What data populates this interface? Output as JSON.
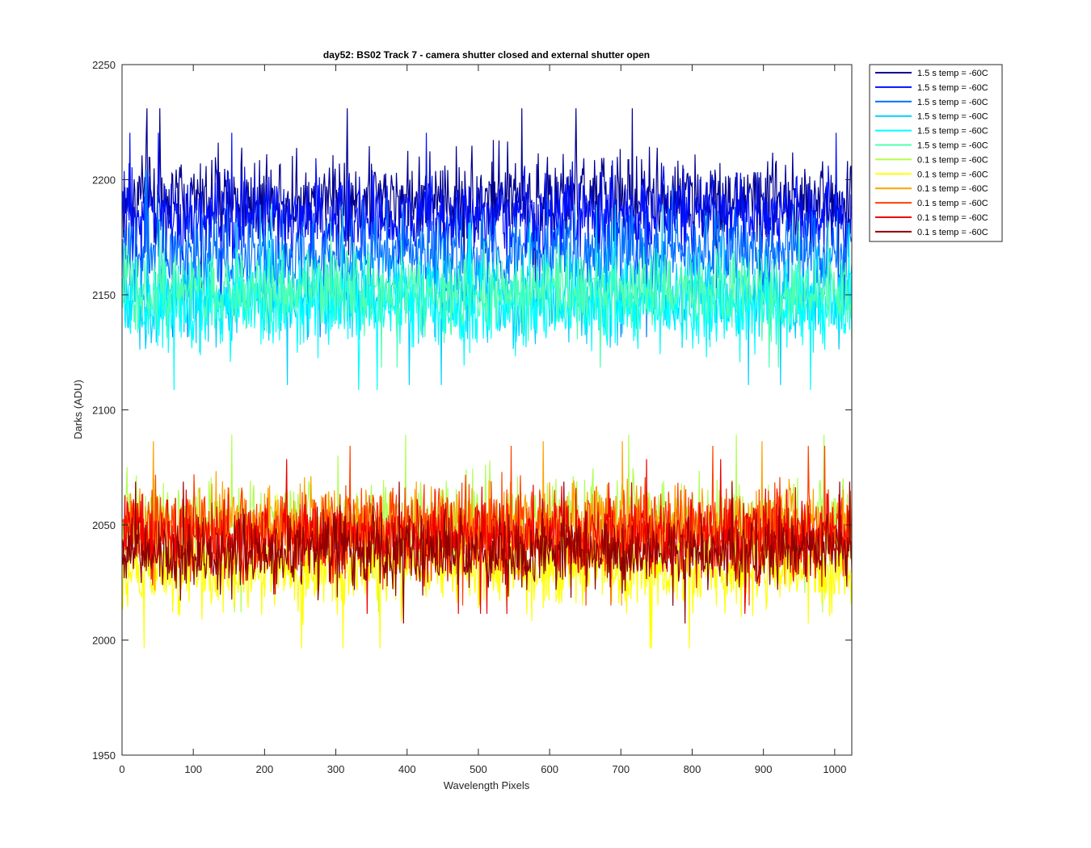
{
  "chart_data": {
    "type": "line",
    "title": "day52: BS02  Track 7 - camera shutter closed and external shutter open",
    "xlabel": "Wavelength Pixels",
    "ylabel": "Darks (ADU)",
    "xlim": [
      0,
      1024
    ],
    "ylim": [
      1950,
      2250
    ],
    "x_ticks": [
      0,
      100,
      200,
      300,
      400,
      500,
      600,
      700,
      800,
      900,
      1000
    ],
    "y_ticks": [
      1950,
      2000,
      2050,
      2100,
      2150,
      2200,
      2250
    ],
    "grid": false,
    "legend_position": "outside-top-right",
    "x_range_note": "pixels 1 to 1024",
    "series": [
      {
        "name": "1.5 s temp = -60C",
        "color": "#00008f",
        "level": 2192,
        "spread": 14,
        "min": 2120,
        "max": 2231
      },
      {
        "name": "1.5 s temp = -60C",
        "color": "#0010ff",
        "level": 2184,
        "spread": 13,
        "min": 2110,
        "max": 2225
      },
      {
        "name": "1.5 s temp = -60C",
        "color": "#0070ff",
        "level": 2168,
        "spread": 13,
        "min": 2118,
        "max": 2210
      },
      {
        "name": "1.5 s temp = -60C",
        "color": "#00cfff",
        "level": 2150,
        "spread": 14,
        "min": 2100,
        "max": 2195
      },
      {
        "name": "1.5 s temp = -60C",
        "color": "#00ffff",
        "level": 2145,
        "spread": 13,
        "min": 2100,
        "max": 2185
      },
      {
        "name": "1.5 s temp = -60C",
        "color": "#50ffaf",
        "level": 2152,
        "spread": 12,
        "min": 2110,
        "max": 2182
      },
      {
        "name": "0.1 s temp = -60C",
        "color": "#afff50",
        "level": 2050,
        "spread": 14,
        "min": 2012,
        "max": 2103
      },
      {
        "name": "0.1 s temp = -60C",
        "color": "#ffff00",
        "level": 2030,
        "spread": 12,
        "min": 1982,
        "max": 2085
      },
      {
        "name": "0.1 s temp = -60C",
        "color": "#ffa000",
        "level": 2050,
        "spread": 13,
        "min": 2015,
        "max": 2106
      },
      {
        "name": "0.1 s temp = -60C",
        "color": "#ff4000",
        "level": 2048,
        "spread": 13,
        "min": 2015,
        "max": 2120
      },
      {
        "name": "0.1 s temp = -60C",
        "color": "#ef0000",
        "level": 2045,
        "spread": 12,
        "min": 2010,
        "max": 2110
      },
      {
        "name": "0.1 s temp = -60C",
        "color": "#8f0000",
        "level": 2038,
        "spread": 11,
        "min": 1999,
        "max": 2090
      }
    ]
  }
}
